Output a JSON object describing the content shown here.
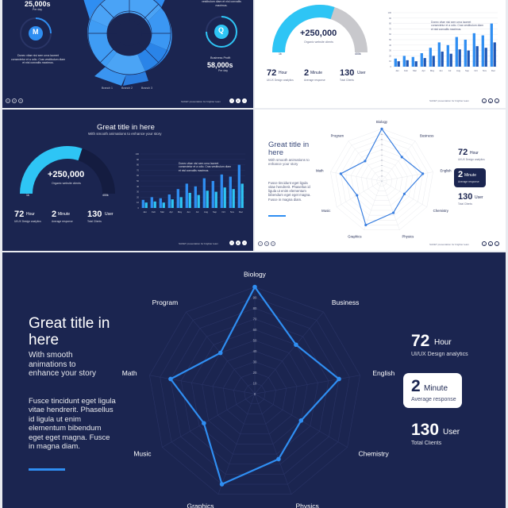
{
  "colors": {
    "navy": "#1b2550",
    "blue": "#2f8ef2",
    "cyan": "#2ec5f5",
    "gray": "#c8c8cc",
    "darkbar": "#1e56b4"
  },
  "common": {
    "footer_text": "SAKET presentation for brighter team",
    "nav_labels": [
      "1",
      "2",
      "3"
    ],
    "social_labels": [
      "f",
      "in",
      "t"
    ],
    "legend_blocks": [
      "Branch 1",
      "Branch 2",
      "Branch 3"
    ]
  },
  "s1": {
    "stat_left_value": "25,000s",
    "stat_left_sub": "Per day",
    "badge_left": "M",
    "text_left": "Donec vitae nisi sem urna laoreet consectetur et a odio. Cras vestibulum diam et nisl convallis maximus.",
    "text_right_top": "vestibulum diam et nisl convallis maximus.",
    "badge_right": "Q",
    "profit_label": "Business Profit",
    "profit_value": "58,000s",
    "profit_sub": "Per day"
  },
  "gauge": {
    "value": "+250,000",
    "label": "Organic website clients",
    "min": "1k",
    "max": "400k",
    "fill_fraction": 0.6
  },
  "stats": [
    {
      "num": "72",
      "unit": "Hour",
      "sub": "UI/UX Design analytics"
    },
    {
      "num": "2",
      "unit": "Minute",
      "sub": "Average response"
    },
    {
      "num": "130",
      "unit": "User",
      "sub": "Total Clients"
    }
  ],
  "s2": {
    "chart_text": "Donec vitae nisi sem urna laoreet consectetur et a odio. Cras vestibulum diam et nisl convallis maximus."
  },
  "s3": {
    "title": "Great title in here",
    "subtitle": "With smooth animations to enhance your story",
    "chart_text": "Donec vitae nisi sem urna laoreet consectetur et a odio. Cras vestibulum diam et nisl convallis maximus."
  },
  "s4": {
    "title": "Great title in here",
    "subtitle": "With smooth animations to enhance your story",
    "body": "Fusce tincidunt eget ligula vitae hendrerit. Phasellus id ligula ut enim elementum bibendum eget eget magna. Fusce in magna diam."
  },
  "s5": {
    "title": "Great title in here",
    "subtitle": "With smooth animations to enhance your story",
    "body": "Fusce tincidunt eget ligula vitae hendrerit. Phasellus id ligula ut enim elementum bibendum eget eget magna. Fusce in magna diam."
  },
  "chart_data": [
    {
      "type": "bar",
      "categories": [
        "Jan",
        "Feb",
        "Mar",
        "Apr",
        "May",
        "Jun",
        "Jul",
        "Aug",
        "Sep",
        "Oct",
        "Nov",
        "Dec"
      ],
      "series": [
        {
          "values": [
            15,
            20,
            18,
            25,
            35,
            45,
            40,
            55,
            50,
            62,
            58,
            80
          ]
        },
        {
          "values": [
            10,
            12,
            10,
            16,
            20,
            28,
            24,
            32,
            30,
            38,
            35,
            45
          ]
        }
      ],
      "ylim": [
        0,
        100
      ]
    },
    {
      "type": "radar",
      "axes": [
        "Biology",
        "Business",
        "English",
        "Chemistry",
        "Physics",
        "Graphics",
        "Music",
        "Math",
        "Program"
      ],
      "values": [
        100,
        60,
        80,
        50,
        65,
        90,
        55,
        80,
        50
      ],
      "rmax": 100,
      "ticks": [
        0,
        10,
        20,
        30,
        40,
        50,
        60,
        70,
        80,
        90
      ]
    }
  ]
}
